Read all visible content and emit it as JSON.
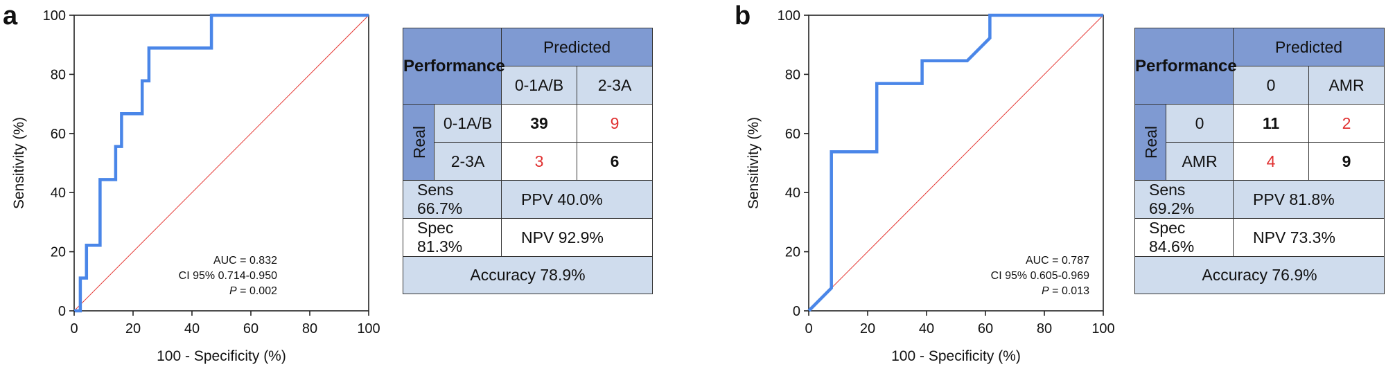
{
  "panels": [
    {
      "letter": "a",
      "auc_text": "AUC = 0.832",
      "ci_text": "CI 95% 0.714-0.950",
      "p_label": "P",
      "p_value": " = 0.002",
      "table": {
        "header": "Performance",
        "predicted": "Predicted",
        "real": "Real",
        "classes": [
          "0-1A/B",
          "2-3A"
        ],
        "tp": "39",
        "fp": "9",
        "fn": "3",
        "tn": "6",
        "sens": "Sens 66.7%",
        "ppv": "PPV 40.0%",
        "spec": "Spec 81.3%",
        "npv": "NPV 92.9%",
        "accuracy": "Accuracy 78.9%"
      }
    },
    {
      "letter": "b",
      "auc_text": "AUC = 0.787",
      "ci_text": "CI 95% 0.605-0.969",
      "p_label": "P",
      "p_value": " = 0.013",
      "table": {
        "header": "Performance",
        "predicted": "Predicted",
        "real": "Real",
        "classes": [
          "0",
          "AMR"
        ],
        "tp": "11",
        "fp": "2",
        "fn": "4",
        "tn": "9",
        "sens": "Sens 69.2%",
        "ppv": "PPV 81.8%",
        "spec": "Spec 84.6%",
        "npv": "NPV 73.3%",
        "accuracy": "Accuracy 76.9%"
      }
    }
  ],
  "chart_data": [
    {
      "type": "line",
      "xlabel": "100 - Specificity (%)",
      "ylabel": "Sensitivity (%)",
      "xlim": [
        0,
        100
      ],
      "ylim": [
        0,
        100
      ],
      "xticks": [
        0,
        20,
        40,
        60,
        80,
        100
      ],
      "yticks": [
        0,
        20,
        40,
        60,
        80,
        100
      ],
      "grid": false,
      "colors": {
        "roc": "#4a86e8",
        "reference": "#e53935"
      },
      "series": [
        {
          "x": [
            0,
            2.1,
            2.1,
            4.2,
            4.2,
            8.8,
            8.8,
            14.1,
            14.1,
            16.1,
            16.1,
            23.1,
            23.1,
            25.4,
            25.4,
            46.6,
            46.6,
            100
          ],
          "y": [
            0,
            0,
            11.1,
            11.1,
            22.2,
            22.2,
            44.4,
            44.4,
            55.6,
            55.6,
            66.7,
            66.7,
            77.8,
            77.8,
            88.9,
            88.9,
            100,
            100
          ]
        },
        {
          "x": [
            0,
            100
          ],
          "y": [
            0,
            100
          ]
        }
      ]
    },
    {
      "type": "line",
      "xlabel": "100 - Specificity (%)",
      "ylabel": "Sensitivity (%)",
      "xlim": [
        0,
        100
      ],
      "ylim": [
        0,
        100
      ],
      "xticks": [
        0,
        20,
        40,
        60,
        80,
        100
      ],
      "yticks": [
        0,
        20,
        40,
        60,
        80,
        100
      ],
      "grid": false,
      "colors": {
        "roc": "#4a86e8",
        "reference": "#e53935"
      },
      "series": [
        {
          "x": [
            0,
            7.7,
            7.7,
            23.1,
            23.1,
            38.5,
            38.5,
            53.8,
            61.5,
            61.5,
            100
          ],
          "y": [
            0,
            7.7,
            53.8,
            53.8,
            76.9,
            76.9,
            84.6,
            84.6,
            92.3,
            100,
            100
          ]
        },
        {
          "x": [
            0,
            100
          ],
          "y": [
            0,
            100
          ]
        }
      ]
    }
  ]
}
